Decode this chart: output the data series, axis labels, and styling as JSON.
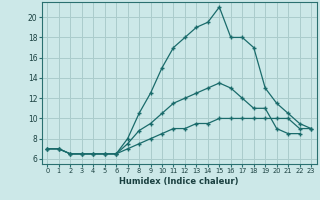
{
  "xlabel": "Humidex (Indice chaleur)",
  "bg_color": "#cce8e8",
  "grid_color": "#aacccc",
  "line_color": "#1a6b6b",
  "x": [
    0,
    1,
    2,
    3,
    4,
    5,
    6,
    7,
    8,
    9,
    10,
    11,
    12,
    13,
    14,
    15,
    16,
    17,
    18,
    19,
    20,
    21,
    22,
    23
  ],
  "line1": [
    7.0,
    7.0,
    6.5,
    6.5,
    6.5,
    6.5,
    6.5,
    8.0,
    10.5,
    12.5,
    15.0,
    17.0,
    18.0,
    19.0,
    19.5,
    21.0,
    18.0,
    18.0,
    17.0,
    13.0,
    11.5,
    10.5,
    9.5,
    9.0
  ],
  "line2": [
    7.0,
    7.0,
    6.5,
    6.5,
    6.5,
    6.5,
    6.5,
    7.5,
    8.8,
    9.5,
    10.5,
    11.5,
    12.0,
    12.5,
    13.0,
    13.5,
    13.0,
    12.0,
    11.0,
    11.0,
    9.0,
    8.5,
    8.5,
    null
  ],
  "line3": [
    7.0,
    7.0,
    6.5,
    6.5,
    6.5,
    6.5,
    6.5,
    7.0,
    7.5,
    8.0,
    8.5,
    9.0,
    9.0,
    9.5,
    9.5,
    10.0,
    10.0,
    10.0,
    10.0,
    10.0,
    10.0,
    10.0,
    9.0,
    9.0
  ],
  "ylim": [
    5.5,
    21.5
  ],
  "xlim": [
    -0.5,
    23.5
  ],
  "yticks": [
    6,
    8,
    10,
    12,
    14,
    16,
    18,
    20
  ],
  "xticks": [
    0,
    1,
    2,
    3,
    4,
    5,
    6,
    7,
    8,
    9,
    10,
    11,
    12,
    13,
    14,
    15,
    16,
    17,
    18,
    19,
    20,
    21,
    22,
    23
  ]
}
